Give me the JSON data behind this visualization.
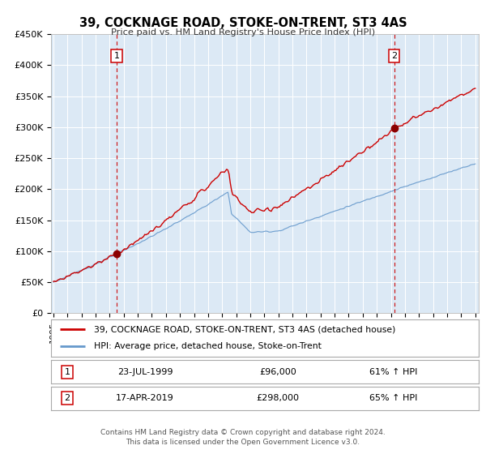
{
  "title": "39, COCKNAGE ROAD, STOKE-ON-TRENT, ST3 4AS",
  "subtitle": "Price paid vs. HM Land Registry's House Price Index (HPI)",
  "hpi_label": "HPI: Average price, detached house, Stoke-on-Trent",
  "property_label": "39, COCKNAGE ROAD, STOKE-ON-TRENT, ST3 4AS (detached house)",
  "sale1_date": "23-JUL-1999",
  "sale1_price": "£96,000",
  "sale1_hpi": "61% ↑ HPI",
  "sale2_date": "17-APR-2019",
  "sale2_price": "£298,000",
  "sale2_hpi": "65% ↑ HPI",
  "footer1": "Contains HM Land Registry data © Crown copyright and database right 2024.",
  "footer2": "This data is licensed under the Open Government Licence v3.0.",
  "bg_color": "#dce9f5",
  "plot_bg_color": "#dce9f5",
  "red_line_color": "#cc0000",
  "blue_line_color": "#6699cc",
  "vline_color": "#cc0000",
  "dot_color": "#8b0000",
  "ylim_max": 450000,
  "ylim_min": 0
}
